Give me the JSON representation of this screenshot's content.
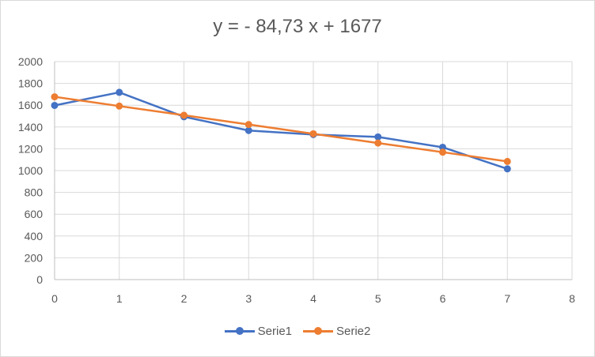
{
  "chart_data": {
    "type": "line",
    "title": "y = - 84,73 x + 1677",
    "xlabel": "",
    "ylabel": "",
    "xlim": [
      0,
      8
    ],
    "ylim": [
      0,
      2000
    ],
    "xticks": [
      0,
      1,
      2,
      3,
      4,
      5,
      6,
      7,
      8
    ],
    "yticks": [
      0,
      200,
      400,
      600,
      800,
      1000,
      1200,
      1400,
      1600,
      1800,
      2000
    ],
    "grid": true,
    "legend_position": "bottom",
    "x": [
      0,
      1,
      2,
      3,
      4,
      5,
      6,
      7
    ],
    "series": [
      {
        "name": "Serie1",
        "color": "#4472C4",
        "values": [
          1598,
          1718,
          1494,
          1368,
          1331,
          1309,
          1214,
          1016
        ]
      },
      {
        "name": "Serie2",
        "color": "#ED7D31",
        "values": [
          1677,
          1592,
          1508,
          1423,
          1338,
          1253,
          1169,
          1084
        ]
      }
    ]
  }
}
